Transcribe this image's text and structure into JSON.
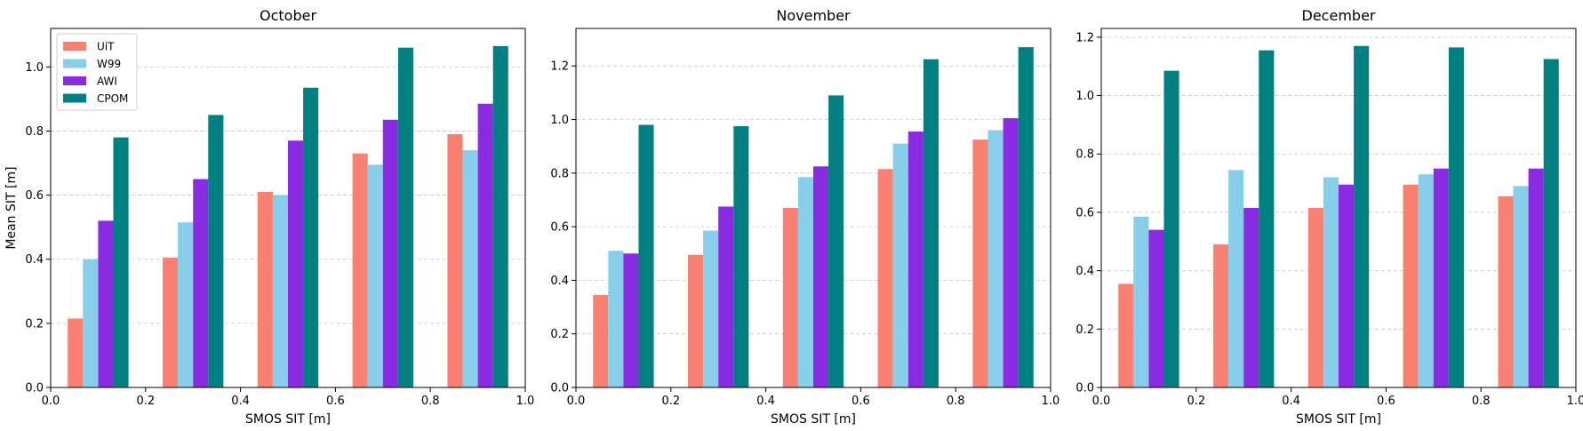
{
  "figure": {
    "series_colors": {
      "UiT": "#fa8072",
      "W99": "#87ceeb",
      "AWI": "#8a2be2",
      "CPOM": "#008080"
    }
  },
  "chart_data": [
    {
      "type": "bar",
      "title": "October",
      "xlabel": "SMOS SIT [m]",
      "ylabel": "Mean SIT [m]",
      "xlim": [
        0,
        1.0
      ],
      "ylim": [
        0,
        1.12
      ],
      "xticks": [
        "0.0",
        "0.2",
        "0.4",
        "0.6",
        "0.8",
        "1.0"
      ],
      "yticks": [
        "0.0",
        "0.2",
        "0.4",
        "0.6",
        "0.8",
        "1.0"
      ],
      "grid": "y-dashed",
      "legend": "top-left",
      "x": [
        0.1,
        0.3,
        0.5,
        0.7,
        0.9
      ],
      "series": [
        {
          "name": "UiT",
          "values": [
            0.215,
            0.405,
            0.61,
            0.73,
            0.79
          ]
        },
        {
          "name": "W99",
          "values": [
            0.4,
            0.515,
            0.6,
            0.695,
            0.74
          ]
        },
        {
          "name": "AWI",
          "values": [
            0.52,
            0.65,
            0.77,
            0.835,
            0.885
          ]
        },
        {
          "name": "CPOM",
          "values": [
            0.78,
            0.85,
            0.935,
            1.06,
            1.065
          ]
        }
      ]
    },
    {
      "type": "bar",
      "title": "November",
      "xlabel": "SMOS SIT [m]",
      "ylabel": "",
      "xlim": [
        0,
        1.0
      ],
      "ylim": [
        0,
        1.34
      ],
      "xticks": [
        "0.0",
        "0.2",
        "0.4",
        "0.6",
        "0.8",
        "1.0"
      ],
      "yticks": [
        "0.0",
        "0.2",
        "0.4",
        "0.6",
        "0.8",
        "1.0",
        "1.2"
      ],
      "grid": "y-dashed",
      "x": [
        0.1,
        0.3,
        0.5,
        0.7,
        0.9
      ],
      "series": [
        {
          "name": "UiT",
          "values": [
            0.345,
            0.495,
            0.67,
            0.815,
            0.925
          ]
        },
        {
          "name": "W99",
          "values": [
            0.51,
            0.585,
            0.785,
            0.91,
            0.96
          ]
        },
        {
          "name": "AWI",
          "values": [
            0.5,
            0.675,
            0.825,
            0.955,
            1.005
          ]
        },
        {
          "name": "CPOM",
          "values": [
            0.98,
            0.975,
            1.09,
            1.225,
            1.27
          ]
        }
      ]
    },
    {
      "type": "bar",
      "title": "December",
      "xlabel": "SMOS SIT [m]",
      "ylabel": "",
      "xlim": [
        0,
        1.0
      ],
      "ylim": [
        0,
        1.23
      ],
      "xticks": [
        "0.0",
        "0.2",
        "0.4",
        "0.6",
        "0.8",
        "1.0"
      ],
      "yticks": [
        "0.0",
        "0.2",
        "0.4",
        "0.6",
        "0.8",
        "1.0",
        "1.2"
      ],
      "grid": "y-dashed",
      "x": [
        0.1,
        0.3,
        0.5,
        0.7,
        0.9
      ],
      "series": [
        {
          "name": "UiT",
          "values": [
            0.355,
            0.49,
            0.615,
            0.695,
            0.655
          ]
        },
        {
          "name": "W99",
          "values": [
            0.585,
            0.745,
            0.72,
            0.73,
            0.69
          ]
        },
        {
          "name": "AWI",
          "values": [
            0.54,
            0.615,
            0.695,
            0.75,
            0.75
          ]
        },
        {
          "name": "CPOM",
          "values": [
            1.085,
            1.155,
            1.17,
            1.165,
            1.125
          ]
        }
      ]
    }
  ]
}
